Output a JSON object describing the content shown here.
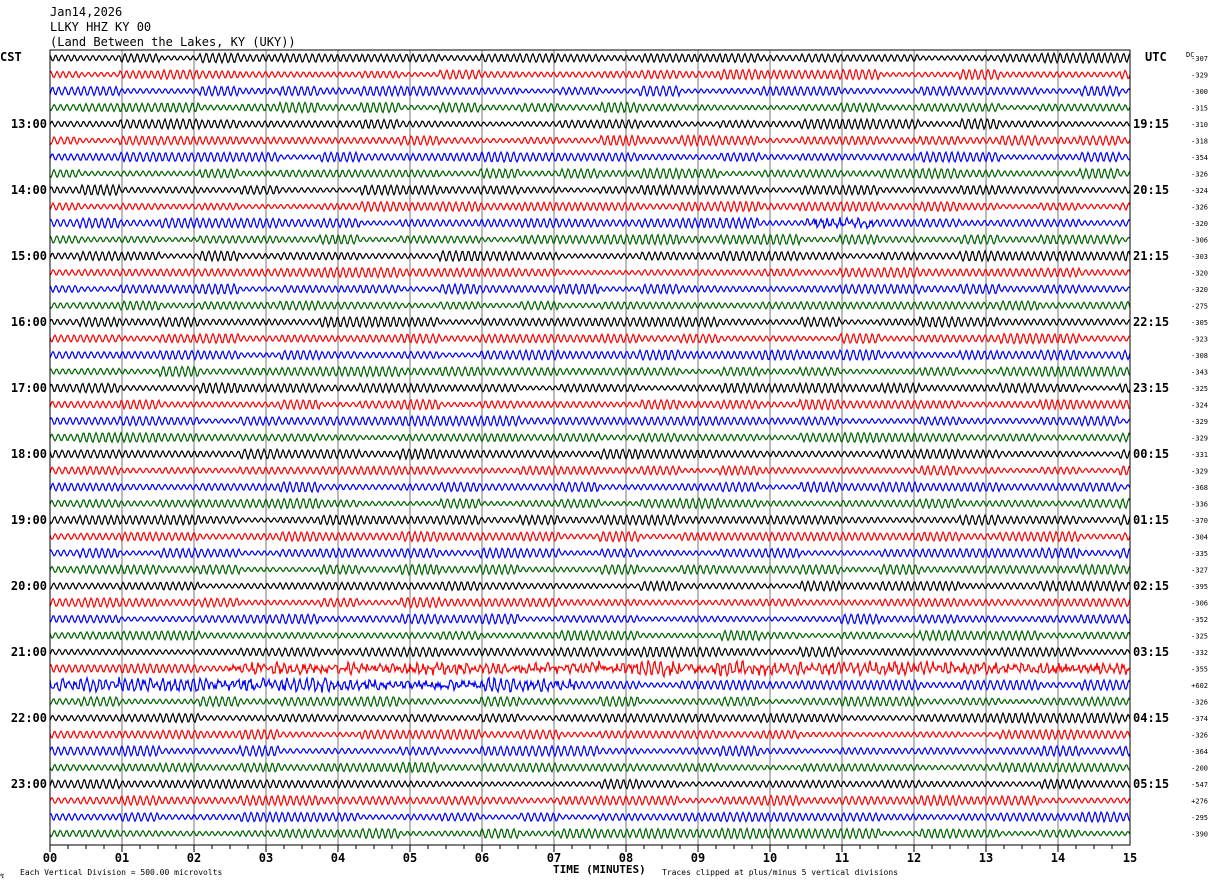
{
  "header": {
    "date": "Jan14,2026",
    "station": "LLKY HHZ KY 00",
    "location": "(Land Between the Lakes, KY (UKY))"
  },
  "left_axis_label": "CST",
  "right_axis_label": "UTC",
  "dc_label": "DC",
  "footer": {
    "scale": "Each Vertical Division =  500.00 microvolts",
    "xlabel": "TIME (MINUTES)",
    "clip_note": "Traces clipped at plus/minus 5 vertical divisions"
  },
  "chart_data": {
    "type": "line",
    "title": "LLKY HHZ KY 00 helicorder Jan14,2026",
    "xlabel": "TIME (MINUTES)",
    "xlim": [
      0,
      15
    ],
    "x_ticks": [
      "00",
      "01",
      "02",
      "03",
      "04",
      "05",
      "06",
      "07",
      "08",
      "09",
      "10",
      "11",
      "12",
      "13",
      "14",
      "15"
    ],
    "trace_colors": [
      "#000000",
      "#ff0000",
      "#0000ff",
      "#006400"
    ],
    "lines_per_hour": 4,
    "cst_hour_labels": [
      "13:00",
      "14:00",
      "15:00",
      "16:00",
      "17:00",
      "18:00",
      "19:00",
      "20:00",
      "21:00",
      "22:00",
      "23:00"
    ],
    "utc_hour_labels": [
      "19:15",
      "20:15",
      "21:15",
      "22:15",
      "23:15",
      "00:15",
      "01:15",
      "02:15",
      "03:15",
      "04:15",
      "05:15"
    ],
    "dc_offsets": [
      "-307",
      "-329",
      "-300",
      "-315",
      "-310",
      "-318",
      "-354",
      "-326",
      "-324",
      "-326",
      "-320",
      "-306",
      "-303",
      "-320",
      "-320",
      "-275",
      "-305",
      "-323",
      "-308",
      "-343",
      "-325",
      "-324",
      "-329",
      "-329",
      "-331",
      "-329",
      "-368",
      "-336",
      "-370",
      "-304",
      "-335",
      "-327",
      "-395",
      "-306",
      "-352",
      "-325",
      "-332",
      "-355",
      "+602",
      "-326",
      "-374",
      "-326",
      "-364",
      "-200",
      "-547",
      "+276",
      "-295",
      "-390"
    ],
    "noisy_segments": [
      {
        "trace": 10,
        "from_min": 10.5,
        "to_min": 11.5
      },
      {
        "trace": 37,
        "from_min": 2.5,
        "to_min": 15
      },
      {
        "trace": 38,
        "from_min": 0,
        "to_min": 7.3
      }
    ]
  }
}
